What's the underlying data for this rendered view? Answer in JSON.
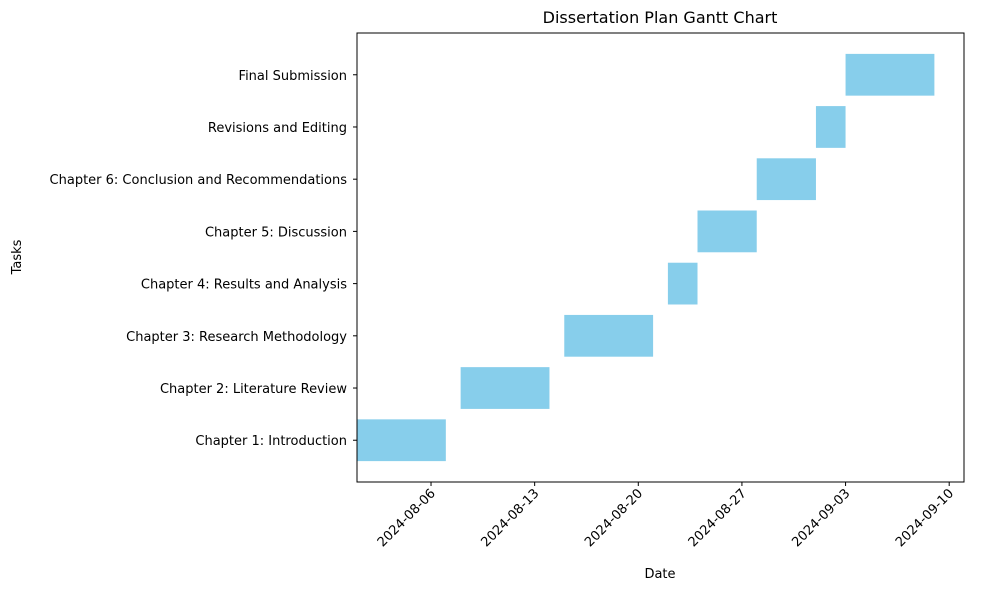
{
  "chart_data": {
    "type": "gantt",
    "title": "Dissertation Plan Gantt Chart",
    "xlabel": "Date",
    "ylabel": "Tasks",
    "xlim": [
      "2024-08-01",
      "2024-09-11"
    ],
    "x_ticks": [
      "2024-08-06",
      "2024-08-13",
      "2024-08-20",
      "2024-08-27",
      "2024-09-03",
      "2024-09-10"
    ],
    "grid": false,
    "bar_color": "#87CEEB",
    "tasks": [
      {
        "name": "Chapter 1: Introduction",
        "start": "2024-08-01",
        "end": "2024-08-07"
      },
      {
        "name": "Chapter 2: Literature Review",
        "start": "2024-08-08",
        "end": "2024-08-14"
      },
      {
        "name": "Chapter 3: Research Methodology",
        "start": "2024-08-15",
        "end": "2024-08-21"
      },
      {
        "name": "Chapter 4: Results and Analysis",
        "start": "2024-08-22",
        "end": "2024-08-24"
      },
      {
        "name": "Chapter 5: Discussion",
        "start": "2024-08-24",
        "end": "2024-08-28"
      },
      {
        "name": "Chapter 6: Conclusion and Recommendations",
        "start": "2024-08-28",
        "end": "2024-09-01"
      },
      {
        "name": "Revisions and Editing",
        "start": "2024-09-01",
        "end": "2024-09-03"
      },
      {
        "name": "Final Submission",
        "start": "2024-09-03",
        "end": "2024-09-09"
      }
    ]
  }
}
